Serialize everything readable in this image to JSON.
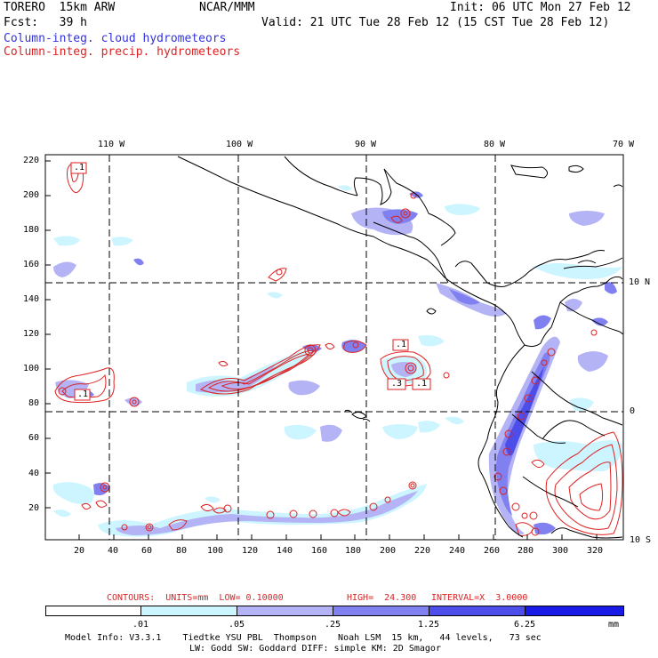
{
  "header": {
    "model_title": "TORERO  15km ARW",
    "institution": "NCAR/MMM",
    "init": "Init: 06 UTC Mon 27 Feb 12",
    "forecast": "Fcst:   39 h",
    "valid": "Valid: 21 UTC Tue 28 Feb 12 (15 CST Tue 28 Feb 12)",
    "field_cloud": "Column-integ. cloud hydrometeors",
    "field_precip": "Column-integ. precip. hydrometeors",
    "cloud_color": "#3333dd",
    "precip_color": "#dd2222"
  },
  "map": {
    "top_lon_labels": [
      "110 W",
      "100 W",
      "90 W",
      "80 W",
      "70 W"
    ],
    "right_lat_labels": [
      "10 N",
      "0",
      "10 S"
    ],
    "left_grid_labels": [
      "220",
      "200",
      "180",
      "160",
      "140",
      "120",
      "100",
      "80",
      "60",
      "40",
      "20"
    ],
    "bottom_grid_labels": [
      "20",
      "40",
      "60",
      "80",
      "100",
      "120",
      "140",
      "160",
      "180",
      "200",
      "220",
      "240",
      "260",
      "280",
      "300",
      "320"
    ],
    "contour_labels": [
      ".1",
      ".1",
      ".1",
      ".3",
      ".1"
    ]
  },
  "contour_info": {
    "contours": "CONTOURS:  UNITS=mm  LOW= 0.10000",
    "high": "HIGH=  24.300",
    "interval": "INTERVAL=X  3.0000"
  },
  "legend": {
    "labels": [
      ".01",
      ".05",
      ".25",
      "1.25",
      "6.25",
      "mm"
    ],
    "colors": [
      "#ffffff",
      "#ccf5ff",
      "#b3b3f5",
      "#8080f0",
      "#4d4dea",
      "#1a1ae6"
    ]
  },
  "footer": {
    "line1": "Model Info: V3.3.1    Tiedtke YSU PBL  Thompson    Noah LSM  15 km,   44 levels,   73 sec",
    "line2": "LW: Godd SW: Goddard DIFF: simple KM: 2D Smagor"
  }
}
